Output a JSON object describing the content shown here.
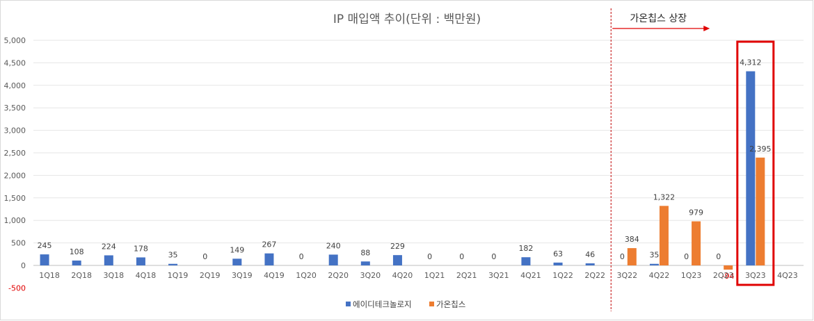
{
  "chart_data": {
    "type": "bar",
    "title": "IP 매입액 추이(단위 : 백만원)",
    "xlabel": "",
    "ylabel": "",
    "ylim": [
      -500,
      5000
    ],
    "yticks": [
      -500,
      0,
      500,
      1000,
      1500,
      2000,
      2500,
      3000,
      3500,
      4000,
      4500,
      5000
    ],
    "ytick_labels": [
      "-500",
      "0",
      "500",
      "1,000",
      "1,500",
      "2,000",
      "2,500",
      "3,000",
      "3,500",
      "4,000",
      "4,500",
      "5,000"
    ],
    "grid": true,
    "legend_position": "bottom",
    "categories": [
      "1Q18",
      "2Q18",
      "3Q18",
      "4Q18",
      "1Q19",
      "2Q19",
      "3Q19",
      "4Q19",
      "1Q20",
      "2Q20",
      "3Q20",
      "4Q20",
      "1Q21",
      "2Q21",
      "3Q21",
      "4Q21",
      "1Q22",
      "2Q22",
      "3Q22",
      "4Q22",
      "1Q23",
      "2Q23",
      "3Q23",
      "4Q23"
    ],
    "series": [
      {
        "name": "에이디테크놀로지",
        "color": "#4472C4",
        "values": [
          245,
          108,
          224,
          178,
          35,
          0,
          149,
          267,
          0,
          240,
          88,
          229,
          0,
          0,
          0,
          182,
          63,
          46,
          0,
          35,
          0,
          0,
          4312,
          null
        ],
        "labels": [
          "245",
          "108",
          "224",
          "178",
          "35",
          "0",
          "149",
          "267",
          "0",
          "240",
          "88",
          "229",
          "0",
          "0",
          "0",
          "182",
          "63",
          "46",
          "0",
          "35",
          "0",
          "0",
          "4,312",
          ""
        ]
      },
      {
        "name": "가온칩스",
        "color": "#ED7D31",
        "values": [
          null,
          null,
          null,
          null,
          null,
          null,
          null,
          null,
          null,
          null,
          null,
          null,
          null,
          null,
          null,
          null,
          null,
          null,
          384,
          1322,
          979,
          -94,
          2395,
          null
        ],
        "labels": [
          "",
          "",
          "",
          "",
          "",
          "",
          "",
          "",
          "",
          "",
          "",
          "",
          "",
          "",
          "",
          "",
          "",
          "",
          "384",
          "1,322",
          "979",
          "-94",
          "2,395",
          ""
        ]
      }
    ],
    "annotations": {
      "listing_text": "가온칩스 상장",
      "listing_divider_after": "2Q22",
      "highlight_category": "3Q23",
      "highlight_color": "#E00000",
      "divider_color": "#C00000"
    }
  }
}
